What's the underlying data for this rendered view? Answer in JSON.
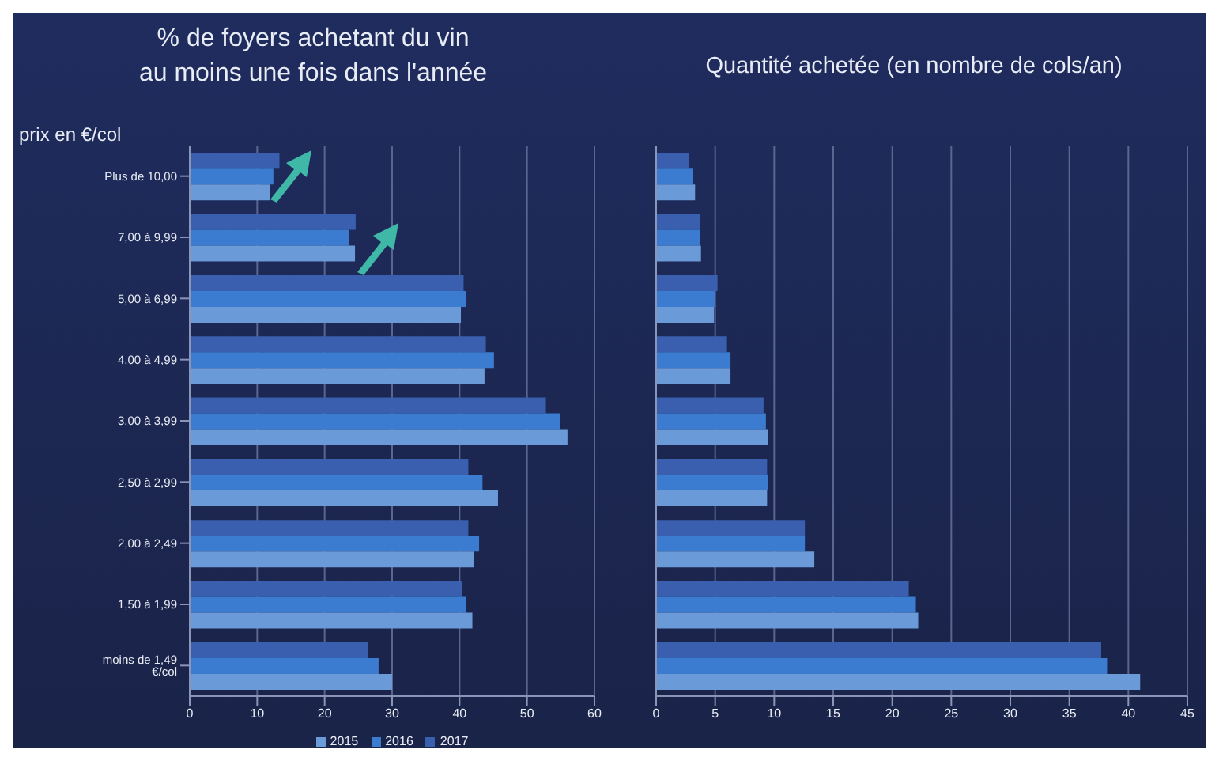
{
  "chart_data": [
    {
      "type": "bar",
      "orientation": "horizontal",
      "title": "% de foyers achetant du vin\nau moins une fois dans l'année",
      "ylabel": "prix en €/col",
      "categories": [
        "Plus de 10,00",
        "7,00 à 9,99",
        "5,00 à 6,99",
        "4,00 à 4,99",
        "3,00 à 3,99",
        "2,50 à 2,99",
        "2,00 à 2,49",
        "1,50 à 1,99",
        "moins de 1,49 €/col"
      ],
      "series": [
        {
          "name": "2017",
          "color": "#3a5fae",
          "values": [
            13.3,
            24.6,
            40.6,
            43.9,
            52.8,
            41.3,
            41.3,
            40.4,
            26.4
          ]
        },
        {
          "name": "2016",
          "color": "#3b7bd0",
          "values": [
            12.4,
            23.6,
            40.9,
            45.1,
            54.9,
            43.4,
            42.9,
            41.0,
            28.0
          ]
        },
        {
          "name": "2015",
          "color": "#6a9ad8",
          "values": [
            11.9,
            24.5,
            40.2,
            43.7,
            56.0,
            45.7,
            42.1,
            41.9,
            30.0
          ]
        }
      ],
      "xlim": [
        0,
        60
      ],
      "xticks": [
        0,
        10,
        20,
        30,
        40,
        50,
        60
      ],
      "grid": "x",
      "legend": "bottom"
    },
    {
      "type": "bar",
      "orientation": "horizontal",
      "title": "Quantité achetée (en nombre de cols/an)",
      "categories": [
        null,
        null,
        null,
        null,
        null,
        null,
        null,
        null,
        null
      ],
      "series": [
        {
          "color": "#3a5fae",
          "values": [
            2.8,
            3.7,
            5.2,
            6.0,
            9.1,
            9.4,
            12.6,
            21.4,
            37.7
          ]
        },
        {
          "color": "#3b7bd0",
          "values": [
            3.1,
            3.7,
            5.0,
            6.3,
            9.3,
            9.5,
            12.6,
            22.0,
            38.2
          ]
        },
        {
          "color": "#6a9ad8",
          "values": [
            3.3,
            3.8,
            4.9,
            6.3,
            9.5,
            9.4,
            13.4,
            22.2,
            41.0
          ]
        }
      ],
      "xlim": [
        0,
        45
      ],
      "xticks": [
        0,
        5,
        10,
        15,
        20,
        25,
        30,
        35,
        40,
        45
      ],
      "grid": "x",
      "tick_labels": "x"
    }
  ]
}
